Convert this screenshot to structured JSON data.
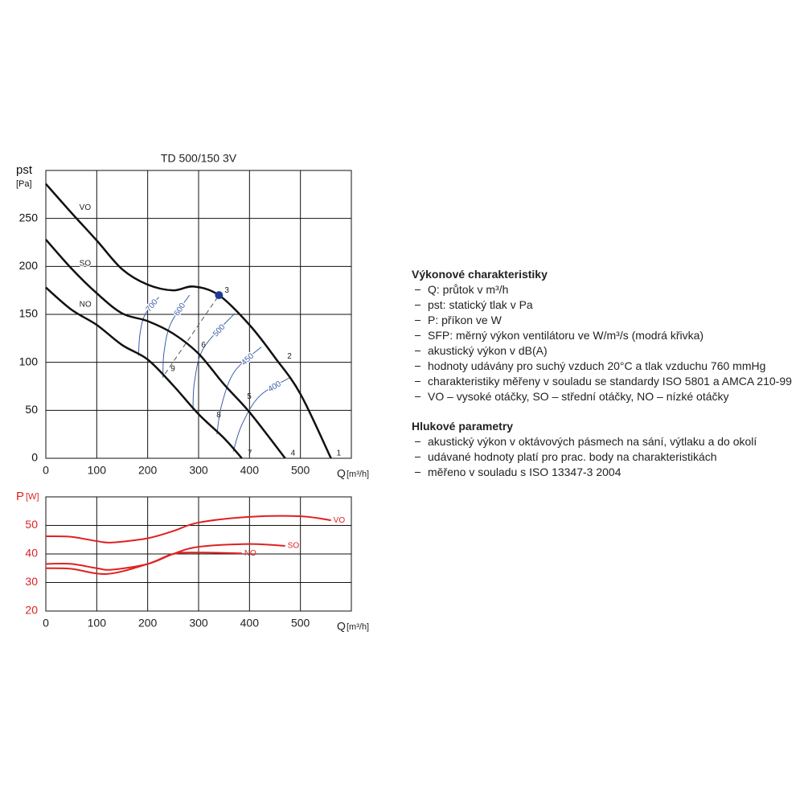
{
  "chart_data": [
    {
      "type": "line",
      "title": "TD 500/150 3V",
      "y_label": "pst",
      "y_unit": "[Pa]",
      "x_label": "Q",
      "x_unit": "[m³/h]",
      "xlim": [
        0,
        600
      ],
      "ylim": [
        0,
        300
      ],
      "xticks": [
        0,
        100,
        200,
        300,
        400,
        500
      ],
      "yticks": [
        0,
        50,
        100,
        150,
        200,
        250
      ],
      "grid": true,
      "label_color": "#111111",
      "series": [
        {
          "name": "VO",
          "color": "#111111",
          "x": [
            0,
            50,
            100,
            150,
            200,
            250,
            290,
            340,
            400,
            450,
            500,
            560
          ],
          "values": [
            286,
            256,
            227,
            197,
            181,
            175,
            179,
            170,
            139,
            105,
            67,
            0
          ]
        },
        {
          "name": "SO",
          "color": "#111111",
          "x": [
            0,
            50,
            100,
            150,
            200,
            250,
            300,
            350,
            400,
            470
          ],
          "values": [
            228,
            198,
            172,
            151,
            143,
            130,
            109,
            77,
            48,
            0
          ]
        },
        {
          "name": "NO",
          "color": "#111111",
          "x": [
            0,
            50,
            100,
            150,
            200,
            250,
            300,
            350,
            385
          ],
          "values": [
            178,
            155,
            139,
            118,
            103,
            76,
            46,
            21,
            0
          ]
        }
      ],
      "sfp_curves": [
        {
          "label": 700,
          "color": "#3a5fa8",
          "x": [
            182,
            185,
            195,
            222
          ],
          "values": [
            107,
            130,
            150,
            168
          ]
        },
        {
          "label": 600,
          "color": "#3a5fa8",
          "x": [
            230,
            232,
            245,
            282
          ],
          "values": [
            84,
            110,
            140,
            170
          ]
        },
        {
          "label": 500,
          "color": "#3a5fa8",
          "x": [
            289,
            292,
            310,
            371
          ],
          "values": [
            50,
            80,
            115,
            151
          ]
        },
        {
          "label": 450,
          "color": "#3a5fa8",
          "x": [
            336,
            345,
            370,
            423
          ],
          "values": [
            25,
            55,
            90,
            116
          ]
        },
        {
          "label": 400,
          "color": "#3a5fa8",
          "x": [
            368,
            385,
            420,
            479
          ],
          "values": [
            7,
            35,
            65,
            84
          ]
        }
      ],
      "points": [
        {
          "label": "1",
          "x": 560,
          "y": 0
        },
        {
          "label": "2",
          "x": 463,
          "y": 101
        },
        {
          "label": "3",
          "x": 340,
          "y": 170
        },
        {
          "label": "4",
          "x": 470,
          "y": 0
        },
        {
          "label": "5",
          "x": 384,
          "y": 59
        },
        {
          "label": "6",
          "x": 294,
          "y": 113
        },
        {
          "label": "7",
          "x": 385,
          "y": 0
        },
        {
          "label": "8",
          "x": 324,
          "y": 40
        },
        {
          "label": "9",
          "x": 234,
          "y": 88
        }
      ],
      "marker": {
        "x": 340,
        "y": 170,
        "color": "#1f3a93"
      }
    },
    {
      "type": "line",
      "y_label": "P",
      "y_unit": "[W]",
      "x_label": "Q",
      "x_unit": "[m³/h]",
      "xlim": [
        0,
        600
      ],
      "ylim": [
        20,
        60
      ],
      "xticks": [
        0,
        100,
        200,
        300,
        400,
        500
      ],
      "yticks": [
        20,
        30,
        40,
        50
      ],
      "grid": true,
      "label_color": "#e02020",
      "series": [
        {
          "name": "VO",
          "color": "#e02020",
          "x": [
            0,
            50,
            100,
            130,
            200,
            250,
            300,
            400,
            500,
            560
          ],
          "values": [
            46.2,
            46,
            44.5,
            44,
            45.5,
            48,
            51,
            53,
            53.2,
            51.8
          ]
        },
        {
          "name": "SO",
          "color": "#e02020",
          "x": [
            0,
            50,
            100,
            130,
            200,
            250,
            300,
            400,
            470
          ],
          "values": [
            36.5,
            36.5,
            35,
            34.5,
            36.5,
            40,
            42.5,
            43.5,
            42.8
          ]
        },
        {
          "name": "NO",
          "color": "#e02020",
          "x": [
            0,
            50,
            120,
            200,
            250,
            300,
            385
          ],
          "values": [
            35,
            34.8,
            33,
            36.5,
            40,
            40.5,
            40.2
          ]
        }
      ]
    }
  ],
  "notes": {
    "heading1": "Výkonové charakteristiky",
    "items1": [
      "Q: průtok v m³/h",
      "pst: statický tlak v Pa",
      "P: příkon ve W",
      "SFP: měrný výkon ventilátoru ve W/m³/s (modrá křivka)",
      "akustický výkon v dB(A)",
      "hodnoty udávány pro suchý vzduch 20°C a tlak vzduchu 760 mmHg",
      "charakteristiky měřeny v souladu se standardy ISO 5801 a AMCA 210-99",
      "VO – vysoké otáčky, SO – střední otáčky, NO – nízké otáčky"
    ],
    "heading2": "Hlukové parametry",
    "items2": [
      "akustický výkon v oktávových pásmech na sání, výtlaku a do okolí",
      "udávané hodnoty platí pro prac. body na charakteristikách",
      "měřeno v souladu s ISO 13347-3 2004"
    ]
  }
}
